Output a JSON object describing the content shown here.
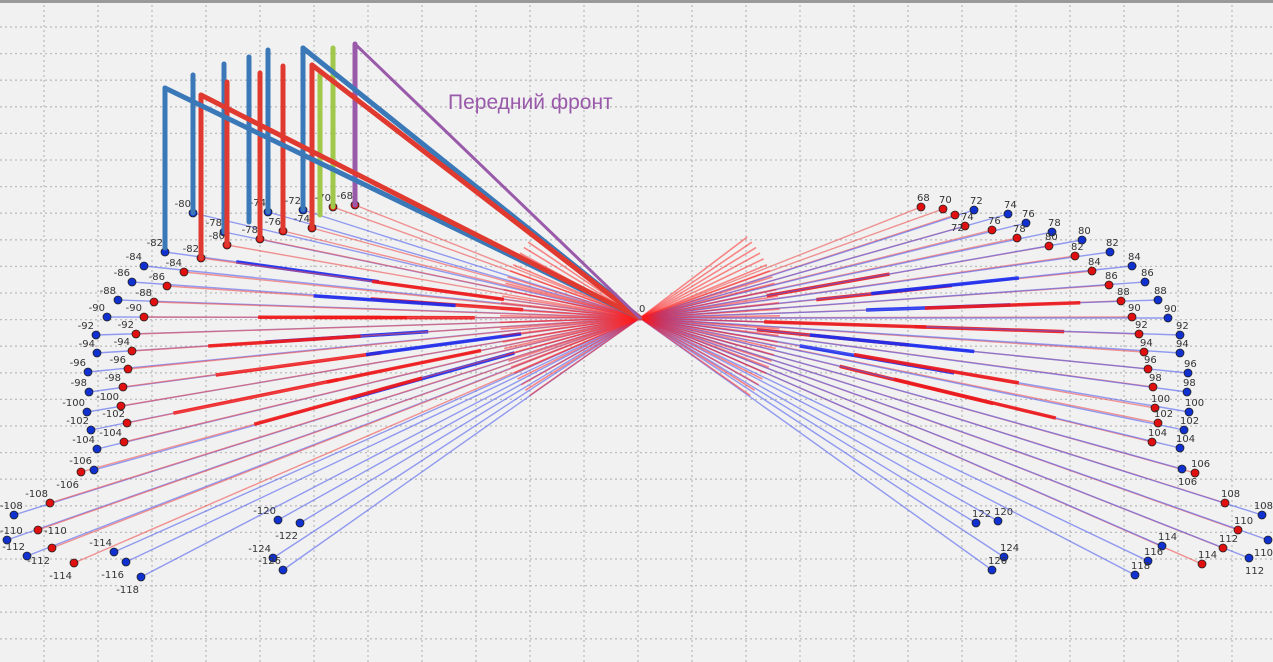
{
  "annotation": {
    "text": "Передний фронт",
    "color": "#9a5aaa"
  },
  "center_label": "0",
  "colors": {
    "blue_points": "#1030d0",
    "red_points": "#e01010",
    "bar_blue": "#3a78b8",
    "bar_red": "#e03a30",
    "bar_green": "#a0c84a",
    "bar_purple": "#9a5aaa",
    "grid": "#bdbdbd"
  },
  "left_blue_labels": [
    "-82",
    "-84",
    "-86",
    "-88",
    "-90",
    "-92",
    "-94",
    "-96",
    "-98",
    "-100",
    "-102",
    "-104",
    "-106",
    "-108",
    "-110",
    "-112",
    "-114",
    "-116",
    "-118",
    "-120",
    "-122",
    "-124",
    "-126",
    "-80",
    "-78",
    "-74",
    "-72"
  ],
  "left_red_labels": [
    "-82",
    "-84",
    "-86",
    "-88",
    "-90",
    "-92",
    "-94",
    "-96",
    "-98",
    "-100",
    "-102",
    "-104",
    "-106",
    "-108",
    "-110",
    "-112",
    "-114",
    "-80",
    "-78",
    "-76",
    "-74",
    "-70",
    "-68"
  ],
  "right_red_labels": [
    "68",
    "70",
    "72",
    "74",
    "76",
    "78",
    "80",
    "82",
    "84",
    "86",
    "88",
    "90",
    "92",
    "94",
    "96",
    "98",
    "100",
    "102",
    "104",
    "106",
    "108",
    "110",
    "112",
    "114"
  ],
  "right_blue_labels": [
    "72",
    "74",
    "76",
    "78",
    "80",
    "82",
    "84",
    "86",
    "88",
    "90",
    "92",
    "94",
    "96",
    "98",
    "100",
    "102",
    "104",
    "106",
    "108",
    "110",
    "112",
    "114",
    "116",
    "118",
    "120",
    "122",
    "124",
    "126"
  ]
}
